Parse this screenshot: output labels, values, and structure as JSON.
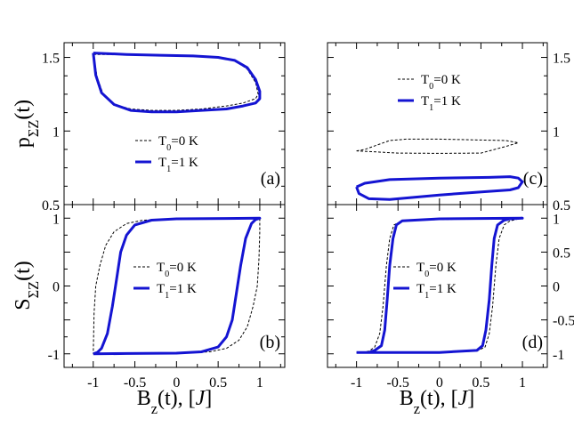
{
  "chart_data": [
    {
      "panel": "a",
      "type": "line",
      "label": "(a)",
      "ylabel": "p_ΣZ(t)",
      "xlim": [
        -1.35,
        1.3
      ],
      "ylim": [
        0.5,
        1.6
      ],
      "yticks": [
        0.5,
        1,
        1.5
      ],
      "ytick_labels": [
        "0.5",
        "1",
        "1.5"
      ],
      "legend_position": "center",
      "series": [
        {
          "name": "T0=0 K",
          "style": "dashed",
          "color": "#000000",
          "x": [
            -1.0,
            -0.6,
            -0.2,
            0.2,
            0.5,
            0.7,
            0.85,
            0.95,
            0.98,
            0.95,
            0.8,
            0.6,
            0.3,
            0.0,
            -0.3,
            -0.55,
            -0.75,
            -0.88,
            -0.95,
            -1.0
          ],
          "y": [
            1.52,
            1.52,
            1.515,
            1.51,
            1.5,
            1.48,
            1.42,
            1.33,
            1.25,
            1.22,
            1.19,
            1.17,
            1.15,
            1.14,
            1.14,
            1.15,
            1.18,
            1.25,
            1.36,
            1.52
          ]
        },
        {
          "name": "T1=1 K",
          "style": "solid",
          "color": "#1414d2",
          "x": [
            -1.0,
            -0.6,
            -0.2,
            0.2,
            0.5,
            0.7,
            0.85,
            0.95,
            1.0,
            1.0,
            0.95,
            0.8,
            0.6,
            0.3,
            0.0,
            -0.3,
            -0.55,
            -0.75,
            -0.9,
            -0.97,
            -1.0
          ],
          "y": [
            1.53,
            1.52,
            1.515,
            1.51,
            1.5,
            1.48,
            1.43,
            1.35,
            1.27,
            1.22,
            1.19,
            1.17,
            1.15,
            1.14,
            1.13,
            1.13,
            1.14,
            1.18,
            1.26,
            1.38,
            1.53
          ]
        }
      ]
    },
    {
      "panel": "b",
      "type": "line",
      "label": "(b)",
      "ylabel": "S_ΣZ(t)",
      "xlabel": "B_z(t), [J]",
      "xlim": [
        -1.35,
        1.3
      ],
      "ylim": [
        -1.2,
        1.2
      ],
      "xticks": [
        -1,
        -0.5,
        0,
        0.5,
        1
      ],
      "xtick_labels": [
        "-1",
        "-0.5",
        "0",
        "0.5",
        "1"
      ],
      "yticks": [
        -1,
        0,
        1
      ],
      "ytick_labels": [
        "-1",
        "0",
        "1"
      ],
      "legend_position": "center-right",
      "series": [
        {
          "name": "T0=0 K",
          "style": "dashed",
          "color": "#000000",
          "x": [
            -1.0,
            -0.6,
            0.0,
            0.4,
            0.6,
            0.75,
            0.85,
            0.92,
            0.97,
            0.99,
            1.0,
            1.0,
            0.6,
            0.0,
            -0.4,
            -0.6,
            -0.75,
            -0.85,
            -0.92,
            -0.97,
            -0.99,
            -1.0
          ],
          "y": [
            -1.0,
            -1.0,
            -0.99,
            -0.97,
            -0.92,
            -0.8,
            -0.6,
            -0.3,
            0.0,
            0.4,
            0.8,
            1.0,
            1.0,
            0.99,
            0.97,
            0.92,
            0.8,
            0.6,
            0.3,
            0.0,
            -0.4,
            -1.0
          ]
        },
        {
          "name": "T1=1 K",
          "style": "solid",
          "color": "#1414d2",
          "x": [
            -1.0,
            -0.6,
            0.0,
            0.3,
            0.5,
            0.6,
            0.67,
            0.72,
            0.77,
            0.83,
            0.9,
            0.95,
            1.0,
            0.6,
            0.0,
            -0.3,
            -0.5,
            -0.6,
            -0.67,
            -0.72,
            -0.77,
            -0.83,
            -0.9,
            -0.95,
            -1.0
          ],
          "y": [
            -1.0,
            -0.995,
            -0.99,
            -0.97,
            -0.9,
            -0.75,
            -0.5,
            -0.1,
            0.3,
            0.7,
            0.92,
            0.98,
            1.0,
            0.995,
            0.99,
            0.97,
            0.9,
            0.75,
            0.5,
            0.1,
            -0.3,
            -0.7,
            -0.92,
            -0.98,
            -1.0
          ]
        }
      ]
    },
    {
      "panel": "c",
      "type": "line",
      "label": "(c)",
      "xlim": [
        -1.35,
        1.3
      ],
      "ylim": [
        0.5,
        1.6
      ],
      "yticks": [
        0.5,
        1,
        1.5
      ],
      "ytick_labels": [
        "0.5",
        "1",
        "1.5"
      ],
      "legend_position": "top-center",
      "series": [
        {
          "name": "T0=0 K",
          "style": "dashed",
          "color": "#000000",
          "x": [
            -1.0,
            -0.9,
            -0.75,
            -0.6,
            -0.4,
            0.0,
            0.4,
            0.8,
            0.95,
            0.8,
            0.6,
            0.5,
            0.0,
            -0.5,
            -1.0
          ],
          "y": [
            0.865,
            0.875,
            0.905,
            0.935,
            0.945,
            0.945,
            0.94,
            0.935,
            0.92,
            0.895,
            0.865,
            0.85,
            0.848,
            0.85,
            0.865
          ]
        },
        {
          "name": "T1=1 K",
          "style": "solid",
          "color": "#1414d2",
          "x": [
            -1.0,
            -0.9,
            -0.6,
            0.0,
            0.6,
            0.85,
            0.95,
            1.0,
            0.95,
            0.85,
            0.6,
            0.0,
            -0.6,
            -0.85,
            -0.97,
            -1.0
          ],
          "y": [
            0.62,
            0.645,
            0.67,
            0.68,
            0.685,
            0.69,
            0.68,
            0.655,
            0.615,
            0.6,
            0.59,
            0.565,
            0.535,
            0.54,
            0.575,
            0.62
          ]
        }
      ]
    },
    {
      "panel": "d",
      "type": "line",
      "label": "(d)",
      "xlabel": "B_z(t), [J]",
      "xlim": [
        -1.35,
        1.3
      ],
      "ylim": [
        -1.2,
        1.2
      ],
      "xticks": [
        -1,
        -0.5,
        0,
        0.5,
        1
      ],
      "xtick_labels": [
        "-1",
        "-0.5",
        "0",
        "0.5",
        "1"
      ],
      "yticks": [
        -1,
        -0.5,
        0,
        0.5,
        1
      ],
      "ytick_labels": [
        "-1",
        "-0.5",
        "0",
        "0.5",
        "1"
      ],
      "legend_position": "center-right",
      "series": [
        {
          "name": "T0=0 K",
          "style": "dashed",
          "color": "#000000",
          "x": [
            -1.0,
            0.0,
            0.45,
            0.55,
            0.6,
            0.64,
            0.68,
            0.72,
            0.78,
            0.85,
            0.92,
            1.0,
            0.0,
            -0.45,
            -0.55,
            -0.6,
            -0.64,
            -0.68,
            -0.72,
            -0.78,
            -0.85,
            -0.92,
            -1.0
          ],
          "y": [
            -0.98,
            -0.98,
            -0.96,
            -0.9,
            -0.7,
            -0.3,
            0.3,
            0.7,
            0.9,
            0.96,
            0.98,
            1.0,
            0.98,
            0.96,
            0.9,
            0.7,
            0.3,
            -0.3,
            -0.7,
            -0.9,
            -0.96,
            -0.98,
            -0.98
          ]
        },
        {
          "name": "T1=1 K",
          "style": "solid",
          "color": "#1414d2",
          "x": [
            -1.0,
            0.0,
            0.45,
            0.52,
            0.56,
            0.6,
            0.63,
            0.66,
            0.7,
            0.78,
            0.85,
            1.0,
            0.0,
            -0.45,
            -0.52,
            -0.56,
            -0.6,
            -0.63,
            -0.66,
            -0.7,
            -0.78,
            -0.85,
            -1.0
          ],
          "y": [
            -0.98,
            -0.98,
            -0.95,
            -0.88,
            -0.65,
            -0.2,
            0.3,
            0.7,
            0.9,
            0.97,
            0.99,
            1.0,
            0.99,
            0.96,
            0.9,
            0.7,
            0.3,
            -0.2,
            -0.65,
            -0.88,
            -0.95,
            -0.98,
            -0.98
          ]
        }
      ]
    }
  ],
  "legend": {
    "t0_sub": "0",
    "t0_rest": "=0 K",
    "t1_sub": "1",
    "t1_rest": "=1 K",
    "T": "T"
  },
  "axis_labels": {
    "p_main": "p",
    "p_sub": "ΣZ",
    "p_rest": "(t)",
    "s_main": "S",
    "s_sub": "ΣZ",
    "s_rest": "(t)",
    "b_main": "B",
    "b_sub": "z",
    "b_rest": "(t), [",
    "b_unit": "J",
    "b_close": "]"
  }
}
